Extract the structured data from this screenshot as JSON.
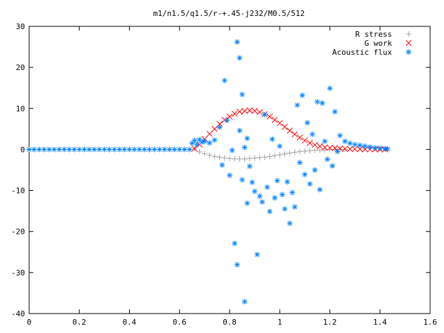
{
  "chart_data": {
    "type": "scatter",
    "title": "m1/n1.5/q1.5/r-+.45-j232/M0.5/512",
    "xlabel": "",
    "ylabel": "",
    "xlim": [
      0,
      1.6
    ],
    "ylim": [
      -40,
      30
    ],
    "grid": false,
    "legend_position": "top-right",
    "x_ticks": [
      "0",
      "0.2",
      "0.4",
      "0.6",
      "0.8",
      "1",
      "1.2",
      "1.4",
      "1.6"
    ],
    "y_ticks": [
      "30",
      "20",
      "10",
      "0",
      "-10",
      "-20",
      "-30",
      "-40"
    ],
    "series": [
      {
        "name": "R stress",
        "marker": "plus",
        "color": "#a0a0a0",
        "x": [
          0.66,
          0.68,
          0.7,
          0.72,
          0.74,
          0.76,
          0.78,
          0.8,
          0.82,
          0.84,
          0.86,
          0.88,
          0.9,
          0.92,
          0.94,
          0.96,
          0.98,
          1.0,
          1.02,
          1.04,
          1.06,
          1.08,
          1.1,
          1.12,
          1.14,
          1.16,
          1.18,
          1.2,
          1.22,
          1.24,
          1.26
        ],
        "y": [
          0.2,
          -0.6,
          -1.0,
          -1.4,
          -1.7,
          -1.9,
          -2.1,
          -2.2,
          -2.3,
          -2.3,
          -2.3,
          -2.2,
          -2.1,
          -2.0,
          -1.9,
          -1.7,
          -1.5,
          -1.3,
          -1.1,
          -0.9,
          -0.7,
          -0.5,
          -0.4,
          -0.3,
          -0.2,
          -0.15,
          -0.1,
          -0.05,
          0.0,
          0.0,
          0.0
        ]
      },
      {
        "name": "G work",
        "marker": "cross",
        "color": "#ff0000",
        "x": [
          0.66,
          0.68,
          0.7,
          0.72,
          0.74,
          0.76,
          0.78,
          0.8,
          0.82,
          0.84,
          0.86,
          0.88,
          0.9,
          0.92,
          0.94,
          0.96,
          0.98,
          1.0,
          1.02,
          1.04,
          1.06,
          1.08,
          1.1,
          1.12,
          1.14,
          1.16,
          1.18,
          1.2,
          1.22,
          1.24,
          1.26,
          1.28,
          1.3,
          1.32,
          1.34,
          1.36,
          1.38,
          1.4,
          1.42
        ],
        "y": [
          0.2,
          1.2,
          2.5,
          3.8,
          5.0,
          6.2,
          7.2,
          8.0,
          8.7,
          9.2,
          9.4,
          9.5,
          9.4,
          9.1,
          8.6,
          8.0,
          7.2,
          6.4,
          5.5,
          4.6,
          3.7,
          2.9,
          2.2,
          1.6,
          1.1,
          0.8,
          0.5,
          0.4,
          0.3,
          0.2,
          0.15,
          0.1,
          0.08,
          0.05,
          0.03,
          0.02,
          0.01,
          0.0,
          0.0
        ]
      },
      {
        "name": "Acoustic flux",
        "marker": "star",
        "color": "#0080ff",
        "x": [
          0.0,
          0.02,
          0.04,
          0.06,
          0.08,
          0.1,
          0.12,
          0.14,
          0.16,
          0.18,
          0.2,
          0.22,
          0.24,
          0.26,
          0.28,
          0.3,
          0.32,
          0.34,
          0.36,
          0.38,
          0.4,
          0.42,
          0.44,
          0.46,
          0.48,
          0.5,
          0.52,
          0.54,
          0.56,
          0.58,
          0.6,
          0.62,
          0.64,
          0.65,
          0.66,
          0.67,
          0.68,
          0.69,
          0.7,
          0.72,
          0.74,
          0.76,
          0.77,
          0.78,
          0.79,
          0.8,
          0.81,
          0.82,
          0.83,
          0.83,
          0.84,
          0.84,
          0.85,
          0.85,
          0.86,
          0.86,
          0.87,
          0.87,
          0.88,
          0.89,
          0.9,
          0.91,
          0.92,
          0.93,
          0.94,
          0.95,
          0.96,
          0.97,
          0.98,
          0.99,
          1.0,
          1.01,
          1.02,
          1.03,
          1.04,
          1.05,
          1.06,
          1.07,
          1.08,
          1.09,
          1.1,
          1.11,
          1.12,
          1.13,
          1.14,
          1.15,
          1.16,
          1.17,
          1.18,
          1.19,
          1.2,
          1.21,
          1.22,
          1.23,
          1.24,
          1.26,
          1.28,
          1.3,
          1.32,
          1.34,
          1.36,
          1.38,
          1.4,
          1.42,
          1.43
        ],
        "y": [
          0,
          0,
          0,
          0,
          0,
          0,
          0,
          0,
          0,
          0,
          0,
          0,
          0,
          0,
          0,
          0,
          0,
          0,
          0,
          0,
          0,
          0,
          0,
          0,
          0,
          0,
          0,
          0,
          0,
          0,
          0,
          0,
          0,
          1.5,
          2.2,
          1.2,
          2.4,
          1.8,
          2.0,
          1.6,
          2.3,
          5.4,
          -3.8,
          16.8,
          7.1,
          -6.3,
          -0.2,
          -22.9,
          26.2,
          -28.1,
          4.6,
          22.3,
          -7.4,
          13.4,
          -37.1,
          0.5,
          2.7,
          -13.1,
          -4.1,
          -8.0,
          -10.2,
          -25.6,
          -11.4,
          -12.8,
          8.5,
          -9.2,
          -15.1,
          2.5,
          -11.8,
          -7.6,
          0.8,
          -11.0,
          -14.5,
          -7.9,
          -18.0,
          -10.5,
          -14.0,
          10.8,
          -3.2,
          13.2,
          -6.1,
          6.5,
          -8.4,
          3.7,
          -5.0,
          11.6,
          -9.8,
          11.3,
          2.0,
          -2.4,
          14.9,
          -4.0,
          9.2,
          -0.5,
          3.4,
          2.0,
          1.5,
          1.2,
          1.0,
          0.8,
          0.6,
          0.4,
          0.3,
          0.2,
          0.1
        ]
      }
    ]
  }
}
